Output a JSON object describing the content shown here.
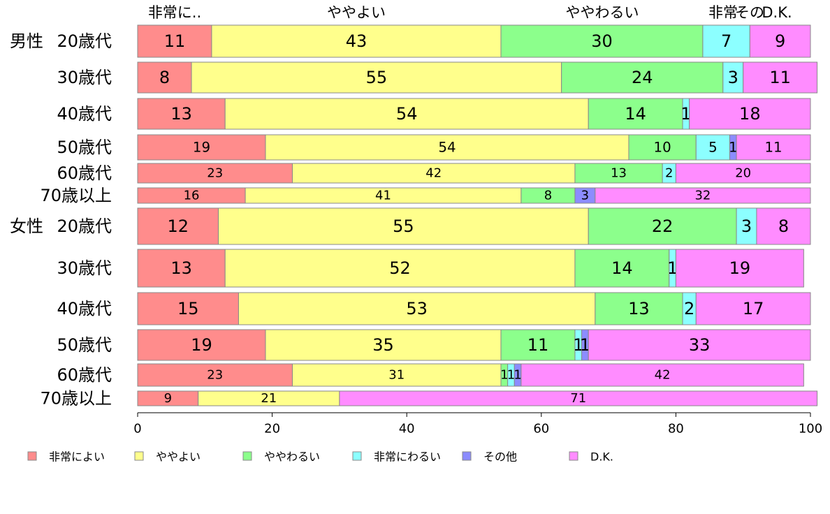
{
  "chart_data": {
    "type": "bar",
    "orientation": "horizontal-stacked",
    "groups": [
      {
        "label": "男性",
        "first_row": 0
      },
      {
        "label": "女性",
        "first_row": 6
      }
    ],
    "categories": [
      "20歳代",
      "30歳代",
      "40歳代",
      "50歳代",
      "60歳代",
      "70歳以上",
      "20歳代",
      "30歳代",
      "40歳代",
      "50歳代",
      "60歳代",
      "70歳以上"
    ],
    "series": [
      {
        "name": "非常によい",
        "color": "#ff8c8c",
        "values": [
          11,
          8,
          13,
          19,
          23,
          16,
          12,
          13,
          15,
          19,
          23,
          9
        ]
      },
      {
        "name": "ややよい",
        "color": "#ffff8c",
        "values": [
          43,
          55,
          54,
          54,
          42,
          41,
          55,
          52,
          53,
          35,
          31,
          21
        ]
      },
      {
        "name": "ややわるい",
        "color": "#8cff8c",
        "values": [
          30,
          24,
          14,
          10,
          13,
          8,
          22,
          14,
          13,
          11,
          1,
          0
        ]
      },
      {
        "name": "非常にわるい",
        "color": "#8cffff",
        "values": [
          7,
          3,
          1,
          5,
          2,
          0,
          3,
          1,
          2,
          1,
          1,
          0
        ]
      },
      {
        "name": "その他",
        "color": "#8c8cff",
        "values": [
          0,
          0,
          0,
          1,
          0,
          3,
          0,
          0,
          0,
          1,
          1,
          0
        ]
      },
      {
        "name": "D.K.",
        "color": "#ff8cff",
        "values": [
          9,
          11,
          18,
          11,
          20,
          32,
          8,
          19,
          17,
          33,
          42,
          71
        ]
      }
    ],
    "top_labels": [
      "非常に..",
      "ややよい",
      "ややわるい",
      "非常",
      "その",
      "D.K."
    ],
    "xticks": [
      0,
      20,
      40,
      60,
      80,
      100
    ],
    "xlim": [
      0,
      100
    ],
    "legend_position": "bottom"
  }
}
